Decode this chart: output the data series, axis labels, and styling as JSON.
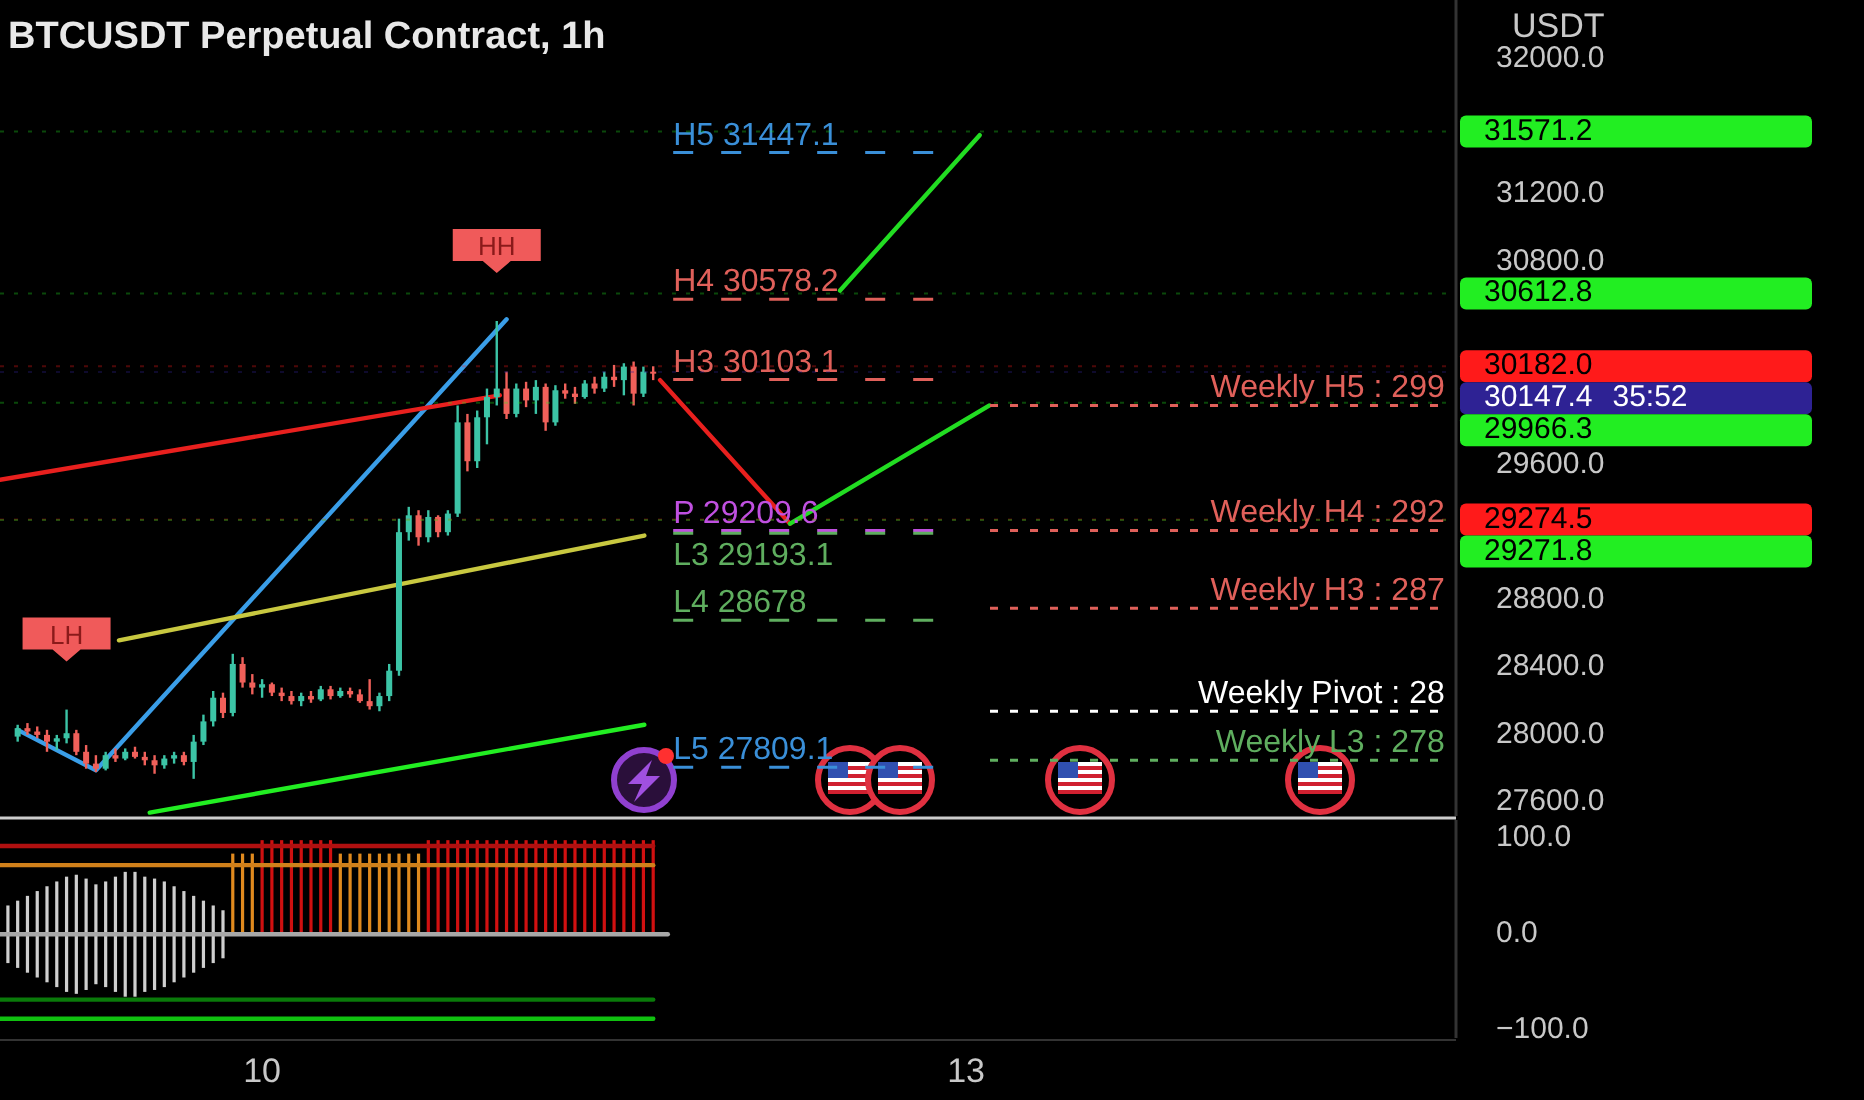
{
  "chart_data": [
    {
      "type": "candlestick",
      "title": "BTCUSDT Perpetual Contract, 1h",
      "ylabel": "USDT",
      "tick_labels": "y",
      "x": [
        8.9583,
        9,
        9.0417,
        9.0833,
        9.125,
        9.1667,
        9.2083,
        9.25,
        9.2917,
        9.3333,
        9.375,
        9.4167,
        9.4583,
        9.5,
        9.5417,
        9.5833,
        9.625,
        9.6667,
        9.7083,
        9.75,
        9.7917,
        9.8333,
        9.875,
        9.9167,
        9.9583,
        10,
        10.0417,
        10.0833,
        10.125,
        10.1667,
        10.2083,
        10.25,
        10.2917,
        10.3333,
        10.375,
        10.4167,
        10.4583,
        10.5,
        10.5417,
        10.5833,
        10.625,
        10.6667,
        10.7083,
        10.75,
        10.7917,
        10.8333,
        10.875,
        10.9167,
        10.9583,
        11,
        11.0417,
        11.0833,
        11.125,
        11.1667,
        11.2083,
        11.25,
        11.2917,
        11.3333,
        11.375,
        11.4167,
        11.4583,
        11.5,
        11.5417,
        11.5833,
        11.625,
        11.6667
      ],
      "ohlc": [
        [
          27990,
          28060,
          27960,
          28040
        ],
        [
          28040,
          28070,
          28000,
          28020
        ],
        [
          28020,
          28050,
          27980,
          28000
        ],
        [
          28000,
          28030,
          27900,
          27960
        ],
        [
          27960,
          28000,
          27910,
          27980
        ],
        [
          27980,
          28150,
          27950,
          28010
        ],
        [
          28010,
          28030,
          27880,
          27900
        ],
        [
          27900,
          27940,
          27800,
          27830
        ],
        [
          27830,
          27880,
          27780,
          27800
        ],
        [
          27800,
          27900,
          27790,
          27880
        ],
        [
          27880,
          27920,
          27840,
          27860
        ],
        [
          27860,
          27920,
          27850,
          27900
        ],
        [
          27900,
          27930,
          27860,
          27870
        ],
        [
          27870,
          27900,
          27820,
          27850
        ],
        [
          27850,
          27880,
          27770,
          27820
        ],
        [
          27820,
          27880,
          27800,
          27860
        ],
        [
          27860,
          27900,
          27830,
          27880
        ],
        [
          27880,
          27900,
          27820,
          27840
        ],
        [
          27840,
          28000,
          27740,
          27960
        ],
        [
          27960,
          28120,
          27940,
          28080
        ],
        [
          28080,
          28260,
          28050,
          28220
        ],
        [
          28220,
          28250,
          28100,
          28130
        ],
        [
          28130,
          28480,
          28110,
          28420
        ],
        [
          28420,
          28460,
          28280,
          28310
        ],
        [
          28310,
          28360,
          28240,
          28280
        ],
        [
          28280,
          28330,
          28220,
          28300
        ],
        [
          28300,
          28310,
          28230,
          28250
        ],
        [
          28250,
          28280,
          28200,
          28230
        ],
        [
          28230,
          28260,
          28180,
          28200
        ],
        [
          28200,
          28250,
          28170,
          28230
        ],
        [
          28230,
          28260,
          28190,
          28210
        ],
        [
          28210,
          28290,
          28200,
          28270
        ],
        [
          28270,
          28290,
          28210,
          28230
        ],
        [
          28230,
          28280,
          28220,
          28260
        ],
        [
          28260,
          28280,
          28220,
          28240
        ],
        [
          28240,
          28270,
          28190,
          28200
        ],
        [
          28200,
          28330,
          28150,
          28170
        ],
        [
          28170,
          28250,
          28140,
          28230
        ],
        [
          28230,
          28420,
          28200,
          28380
        ],
        [
          28380,
          29280,
          28350,
          29200
        ],
        [
          29200,
          29350,
          29150,
          29300
        ],
        [
          29300,
          29330,
          29120,
          29170
        ],
        [
          29170,
          29330,
          29140,
          29290
        ],
        [
          29290,
          29300,
          29170,
          29200
        ],
        [
          29200,
          29330,
          29180,
          29310
        ],
        [
          29310,
          29950,
          29290,
          29850
        ],
        [
          29850,
          29900,
          29560,
          29620
        ],
        [
          29620,
          29920,
          29580,
          29880
        ],
        [
          29880,
          30050,
          29720,
          30000
        ],
        [
          30000,
          30450,
          29950,
          30050
        ],
        [
          30050,
          30150,
          29870,
          29900
        ],
        [
          29900,
          30080,
          29880,
          30050
        ],
        [
          30050,
          30090,
          29940,
          29980
        ],
        [
          29980,
          30100,
          29900,
          30060
        ],
        [
          30060,
          30080,
          29800,
          29850
        ],
        [
          29850,
          30070,
          29830,
          30040
        ],
        [
          30040,
          30080,
          29990,
          30020
        ],
        [
          30020,
          30060,
          29960,
          30000
        ],
        [
          30000,
          30100,
          29990,
          30080
        ],
        [
          30080,
          30120,
          30020,
          30050
        ],
        [
          30050,
          30150,
          30030,
          30120
        ],
        [
          30120,
          30190,
          30060,
          30100
        ],
        [
          30100,
          30200,
          30010,
          30180
        ],
        [
          30180,
          30210,
          29950,
          30020
        ],
        [
          30020,
          30180,
          30000,
          30150
        ],
        [
          30150,
          30182,
          30100,
          30147.4
        ]
      ],
      "xlim": [
        8.883,
        15.088
      ],
      "ylim": [
        27520,
        32350
      ],
      "yticks": [
        {
          "value": 32000,
          "label": "32000.0"
        },
        {
          "value": 31200,
          "label": "31200.0"
        },
        {
          "value": 30800,
          "label": "30800.0"
        },
        {
          "value": 29600,
          "label": "29600.0"
        },
        {
          "value": 28800,
          "label": "28800.0"
        },
        {
          "value": 28400,
          "label": "28400.0"
        },
        {
          "value": 28000,
          "label": "28000.0"
        },
        {
          "value": 27600,
          "label": "27600.0"
        }
      ],
      "series": [
        {
          "type": "line",
          "x": [
            8.958,
            9.292,
            11.042
          ],
          "values": [
            28030,
            27790,
            30460
          ],
          "color": "#3a9ee8"
        },
        {
          "type": "line",
          "x": [
            8.883,
            11.013
          ],
          "values": [
            29510,
            30010
          ],
          "color": "#e8201e"
        },
        {
          "type": "line",
          "x": [
            11.696,
            12.25
          ],
          "values": [
            30100,
            29250
          ],
          "color": "#e8201e"
        },
        {
          "type": "line",
          "x": [
            12.25,
            13.1
          ],
          "values": [
            29250,
            29950
          ],
          "color": "#22dd22"
        },
        {
          "type": "line",
          "x": [
            12.463,
            13.058
          ],
          "values": [
            30630,
            31550
          ],
          "color": "#22dd22"
        },
        {
          "type": "line",
          "x": [
            9.39,
            11.629
          ],
          "values": [
            28560,
            29180
          ],
          "color": "#c8c840"
        },
        {
          "type": "line",
          "x": [
            9.521,
            11.629
          ],
          "values": [
            27540,
            28060
          ],
          "color": "#22ee22"
        }
      ],
      "ref_lines": [
        {
          "axis": "y",
          "value": 31447.1,
          "label": "H5 31447.1",
          "color": "#3a8fd8",
          "line_style": "dashed"
        },
        {
          "axis": "y",
          "value": 30578.2,
          "label": "H4 30578.2",
          "color": "#e0605a",
          "line_style": "dashed"
        },
        {
          "axis": "y",
          "value": 30103.1,
          "label": "H3 30103.1",
          "color": "#e0605a",
          "line_style": "dashed"
        },
        {
          "axis": "y",
          "value": 29209.6,
          "label": "P 29209.6",
          "color": "#c050e0",
          "line_style": "dashed"
        },
        {
          "axis": "y",
          "value": 29193.1,
          "label": "L3 29193.1",
          "color": "#5fae5f",
          "line_style": "dashed"
        },
        {
          "axis": "y",
          "value": 28678,
          "label": "L4 28678",
          "color": "#5fae5f",
          "line_style": "dashed"
        },
        {
          "axis": "y",
          "value": 27809.1,
          "label": "L5 27809.1",
          "color": "#3a8fd8",
          "line_style": "dashed"
        },
        {
          "axis": "y",
          "value": 29950,
          "color": "#e0605a",
          "line_style": "dotted"
        },
        {
          "axis": "y",
          "value": 29210,
          "color": "#e0605a",
          "line_style": "dotted"
        },
        {
          "axis": "y",
          "value": 28750,
          "color": "#e0605a",
          "line_style": "dotted"
        },
        {
          "axis": "y",
          "value": 28140,
          "color": "#ffffff",
          "line_style": "dotted"
        },
        {
          "axis": "y",
          "value": 27850,
          "color": "#5fae5f",
          "line_style": "dotted"
        },
        {
          "axis": "y",
          "value": 31571.2,
          "label": "31571.2",
          "color": "#22ee22"
        },
        {
          "axis": "y",
          "value": 30612.8,
          "label": "30612.8",
          "color": "#22ee22"
        },
        {
          "axis": "y",
          "value": 30182.0,
          "label": "30182.0",
          "color": "#ff1a1a"
        },
        {
          "axis": "y",
          "value": 30147.4,
          "label": "30147.4\n35:52",
          "color": "#2e2294"
        },
        {
          "axis": "y",
          "value": 29966.3,
          "label": "29966.3",
          "color": "#22ee22"
        },
        {
          "axis": "y",
          "value": 29274.5,
          "label": "29274.5",
          "color": "#ff1a1a"
        },
        {
          "axis": "y",
          "value": 29271.8,
          "label": "29271.8",
          "color": "#22ee22"
        }
      ],
      "annotations": [
        {
          "text": "HH",
          "x": 11,
          "y": 30450
        },
        {
          "text": "LH",
          "x": 9.1667,
          "y": 28150
        },
        {
          "text": "Weekly H5 : 299",
          "x": 15.04,
          "y": 29950
        },
        {
          "text": "Weekly H4 : 292",
          "x": 15.04,
          "y": 29210
        },
        {
          "text": "Weekly H3 : 287",
          "x": 15.04,
          "y": 28750
        },
        {
          "text": "Weekly Pivot : 28",
          "x": 15.04,
          "y": 28140
        },
        {
          "text": "Weekly L3 : 278",
          "x": 15.04,
          "y": 27850
        }
      ]
    },
    {
      "type": "bar",
      "xlim": [
        8.883,
        15.088
      ],
      "ylim": [
        -108,
        119
      ],
      "xticks": [
        10,
        13
      ],
      "yticks": [
        {
          "value": 100,
          "label": "100.0"
        },
        {
          "value": 0,
          "label": "0.0"
        },
        {
          "value": -100,
          "label": "−100.0"
        }
      ],
      "series": [
        {
          "type": "bar",
          "x": [
            8.9167,
            8.9583,
            9,
            9.0417,
            9.0833,
            9.125,
            9.1667,
            9.2083,
            9.25,
            9.2917,
            9.3333,
            9.375,
            9.4167,
            9.4583,
            9.5,
            9.5417,
            9.5833,
            9.625,
            9.6667,
            9.7083,
            9.75,
            9.7917,
            9.8333,
            9.875,
            9.9167,
            9.9583,
            10,
            10.0417,
            10.0833,
            10.125,
            10.1667,
            10.2083,
            10.25,
            10.2917,
            10.3333,
            10.375,
            10.4167,
            10.4583,
            10.5,
            10.5417,
            10.5833,
            10.625,
            10.6667,
            10.7083,
            10.75,
            10.7917,
            10.8333,
            10.875,
            10.9167,
            10.9583,
            11,
            11.0417,
            11.0833,
            11.125,
            11.1667,
            11.2083,
            11.25,
            11.2917,
            11.3333,
            11.375,
            11.4167,
            11.4583,
            11.5,
            11.5417,
            11.5833,
            11.625,
            11.6667
          ],
          "base": [
            -30,
            -35,
            -40,
            -45,
            -50,
            -55,
            -60,
            -62,
            -58,
            -52,
            -55,
            -60,
            -65,
            -65,
            -60,
            -58,
            -55,
            -50,
            -45,
            -40,
            -35,
            -30,
            -25,
            0,
            0,
            0,
            0,
            0,
            0,
            0,
            0,
            0,
            0,
            0,
            0,
            0,
            0,
            0,
            0,
            0,
            0,
            0,
            0,
            0,
            0,
            0,
            0,
            0,
            0,
            0,
            0,
            0,
            0,
            0,
            0,
            0,
            0,
            0,
            0,
            0,
            0,
            0,
            0,
            0,
            0,
            0,
            0
          ],
          "values": [
            60,
            70,
            80,
            90,
            100,
            110,
            120,
            124,
            116,
            104,
            110,
            120,
            130,
            130,
            120,
            116,
            110,
            100,
            90,
            80,
            70,
            60,
            50,
            84,
            84,
            84,
            98,
            98,
            98,
            98,
            98,
            98,
            98,
            98,
            84,
            84,
            84,
            84,
            84,
            84,
            84,
            84,
            84,
            98,
            98,
            98,
            98,
            98,
            98,
            98,
            98,
            98,
            98,
            98,
            98,
            98,
            98,
            98,
            98,
            98,
            98,
            98,
            98,
            98,
            98,
            98,
            98
          ],
          "colors": [
            "#cfcfcf",
            "#cfcfcf",
            "#cfcfcf",
            "#cfcfcf",
            "#cfcfcf",
            "#cfcfcf",
            "#cfcfcf",
            "#cfcfcf",
            "#cfcfcf",
            "#cfcfcf",
            "#cfcfcf",
            "#cfcfcf",
            "#cfcfcf",
            "#cfcfcf",
            "#cfcfcf",
            "#cfcfcf",
            "#cfcfcf",
            "#cfcfcf",
            "#cfcfcf",
            "#cfcfcf",
            "#cfcfcf",
            "#cfcfcf",
            "#cfcfcf",
            "#e08a1e",
            "#e08a1e",
            "#e08a1e",
            "#d01010",
            "#d01010",
            "#d01010",
            "#d01010",
            "#d01010",
            "#d01010",
            "#d01010",
            "#d01010",
            "#e08a1e",
            "#e08a1e",
            "#e08a1e",
            "#e08a1e",
            "#e08a1e",
            "#e08a1e",
            "#e08a1e",
            "#e08a1e",
            "#e08a1e",
            "#d01010",
            "#d01010",
            "#d01010",
            "#d01010",
            "#d01010",
            "#d01010",
            "#d01010",
            "#d01010",
            "#d01010",
            "#d01010",
            "#d01010",
            "#d01010",
            "#d01010",
            "#d01010",
            "#d01010",
            "#d01010",
            "#d01010",
            "#d01010",
            "#d01010",
            "#d01010",
            "#d01010",
            "#d01010",
            "#d01010",
            "#d01010"
          ]
        },
        {
          "type": "line",
          "x": [
            8.883,
            11.667
          ],
          "values": [
            92,
            92
          ],
          "color": "#b01010"
        },
        {
          "type": "line",
          "x": [
            8.883,
            11.667
          ],
          "values": [
            72,
            72
          ],
          "color": "#d0801a"
        },
        {
          "type": "line",
          "x": [
            8.883,
            11.729
          ],
          "values": [
            0,
            0
          ],
          "color": "#a8a8a8"
        },
        {
          "type": "line",
          "x": [
            8.883,
            11.667
          ],
          "values": [
            -68,
            -68
          ],
          "color": "#0a7a0a"
        },
        {
          "type": "line",
          "x": [
            8.883,
            11.667
          ],
          "values": [
            -88,
            -88
          ],
          "color": "#10c010"
        }
      ]
    }
  ]
}
